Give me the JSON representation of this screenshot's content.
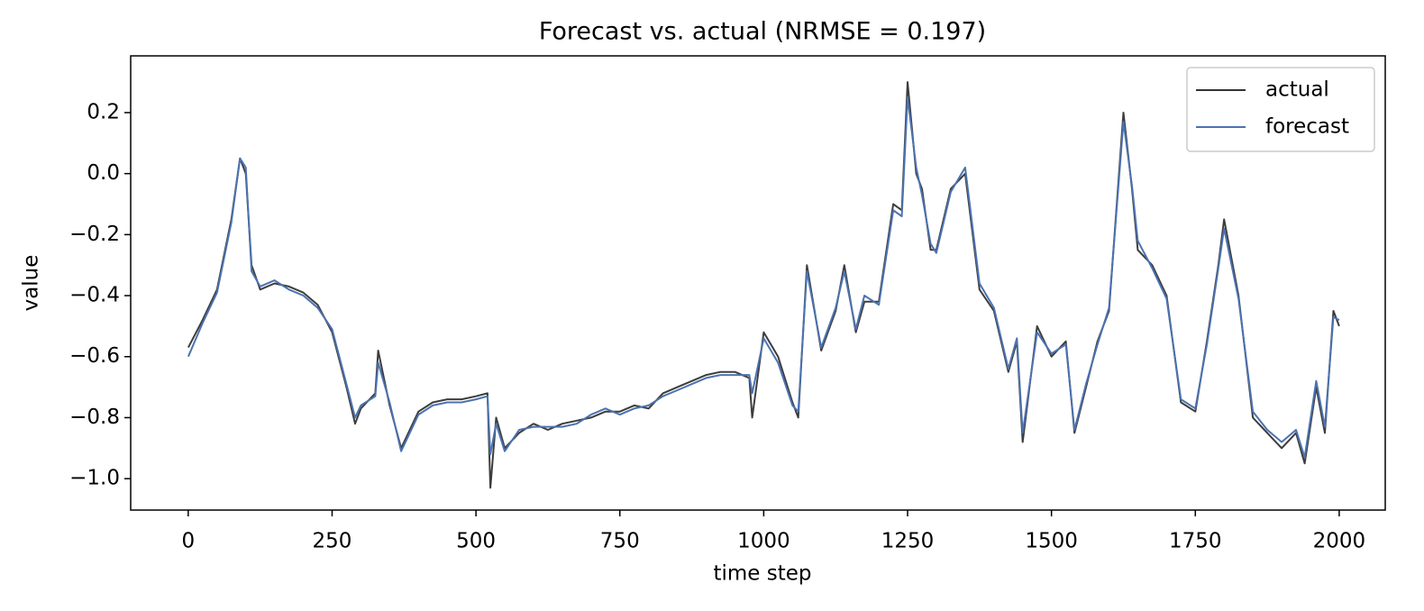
{
  "chart_data": {
    "type": "line",
    "title": "Forecast vs. actual (NRMSE = 0.197)",
    "x_label": "time step",
    "y_label": "value",
    "x": [
      0,
      25,
      50,
      75,
      90,
      100,
      110,
      125,
      150,
      175,
      200,
      225,
      250,
      275,
      290,
      300,
      325,
      330,
      350,
      370,
      400,
      425,
      450,
      475,
      500,
      520,
      525,
      535,
      550,
      575,
      600,
      625,
      650,
      675,
      700,
      725,
      750,
      775,
      800,
      825,
      850,
      875,
      900,
      925,
      950,
      975,
      980,
      1000,
      1025,
      1050,
      1060,
      1075,
      1100,
      1125,
      1140,
      1160,
      1175,
      1200,
      1225,
      1240,
      1250,
      1265,
      1275,
      1290,
      1300,
      1325,
      1350,
      1375,
      1400,
      1425,
      1440,
      1450,
      1475,
      1500,
      1525,
      1540,
      1560,
      1580,
      1600,
      1625,
      1640,
      1650,
      1675,
      1700,
      1725,
      1750,
      1770,
      1790,
      1800,
      1825,
      1850,
      1875,
      1900,
      1925,
      1940,
      1960,
      1975,
      1990,
      2000
    ],
    "series": [
      {
        "name": "actual",
        "color": "#333333",
        "values": [
          -0.57,
          -0.48,
          -0.38,
          -0.15,
          0.05,
          0.0,
          -0.3,
          -0.38,
          -0.36,
          -0.37,
          -0.39,
          -0.43,
          -0.52,
          -0.7,
          -0.82,
          -0.77,
          -0.72,
          -0.58,
          -0.76,
          -0.9,
          -0.78,
          -0.75,
          -0.74,
          -0.74,
          -0.73,
          -0.72,
          -1.03,
          -0.8,
          -0.9,
          -0.85,
          -0.82,
          -0.84,
          -0.82,
          -0.81,
          -0.8,
          -0.78,
          -0.78,
          -0.76,
          -0.77,
          -0.72,
          -0.7,
          -0.68,
          -0.66,
          -0.65,
          -0.65,
          -0.67,
          -0.8,
          -0.52,
          -0.6,
          -0.75,
          -0.8,
          -0.3,
          -0.58,
          -0.45,
          -0.3,
          -0.52,
          -0.42,
          -0.42,
          -0.1,
          -0.12,
          0.3,
          0.0,
          -0.05,
          -0.25,
          -0.25,
          -0.05,
          0.0,
          -0.38,
          -0.45,
          -0.65,
          -0.55,
          -0.88,
          -0.5,
          -0.6,
          -0.55,
          -0.85,
          -0.7,
          -0.55,
          -0.45,
          0.2,
          -0.05,
          -0.25,
          -0.3,
          -0.4,
          -0.75,
          -0.78,
          -0.55,
          -0.3,
          -0.15,
          -0.4,
          -0.8,
          -0.85,
          -0.9,
          -0.85,
          -0.95,
          -0.7,
          -0.85,
          -0.45,
          -0.5
        ]
      },
      {
        "name": "forecast",
        "color": "#4c72b0",
        "values": [
          -0.6,
          -0.49,
          -0.39,
          -0.16,
          0.05,
          0.02,
          -0.32,
          -0.37,
          -0.35,
          -0.38,
          -0.4,
          -0.44,
          -0.51,
          -0.69,
          -0.8,
          -0.76,
          -0.73,
          -0.62,
          -0.75,
          -0.91,
          -0.79,
          -0.76,
          -0.75,
          -0.75,
          -0.74,
          -0.73,
          -0.92,
          -0.82,
          -0.91,
          -0.84,
          -0.83,
          -0.83,
          -0.83,
          -0.82,
          -0.79,
          -0.77,
          -0.79,
          -0.77,
          -0.76,
          -0.73,
          -0.71,
          -0.69,
          -0.67,
          -0.66,
          -0.66,
          -0.66,
          -0.72,
          -0.54,
          -0.62,
          -0.76,
          -0.78,
          -0.32,
          -0.57,
          -0.44,
          -0.32,
          -0.51,
          -0.4,
          -0.43,
          -0.12,
          -0.14,
          0.25,
          0.02,
          -0.07,
          -0.23,
          -0.26,
          -0.06,
          0.02,
          -0.36,
          -0.44,
          -0.64,
          -0.54,
          -0.85,
          -0.52,
          -0.59,
          -0.56,
          -0.84,
          -0.69,
          -0.56,
          -0.44,
          0.17,
          -0.04,
          -0.22,
          -0.31,
          -0.41,
          -0.74,
          -0.77,
          -0.56,
          -0.31,
          -0.18,
          -0.41,
          -0.78,
          -0.84,
          -0.88,
          -0.84,
          -0.93,
          -0.68,
          -0.83,
          -0.47,
          -0.48
        ]
      }
    ],
    "xlim": [
      -100,
      2080
    ],
    "ylim": [
      -1.103,
      0.386
    ],
    "xticks": [
      0,
      250,
      500,
      750,
      1000,
      1250,
      1500,
      1750,
      2000
    ],
    "yticks": [
      {
        "value": -1.0,
        "label": "−1.0"
      },
      {
        "value": -0.8,
        "label": "−0.8"
      },
      {
        "value": -0.6,
        "label": "−0.6"
      },
      {
        "value": -0.4,
        "label": "−0.4"
      },
      {
        "value": -0.2,
        "label": "−0.2"
      },
      {
        "value": 0.0,
        "label": "0.0"
      },
      0.2
    ],
    "legend": "upper right"
  }
}
